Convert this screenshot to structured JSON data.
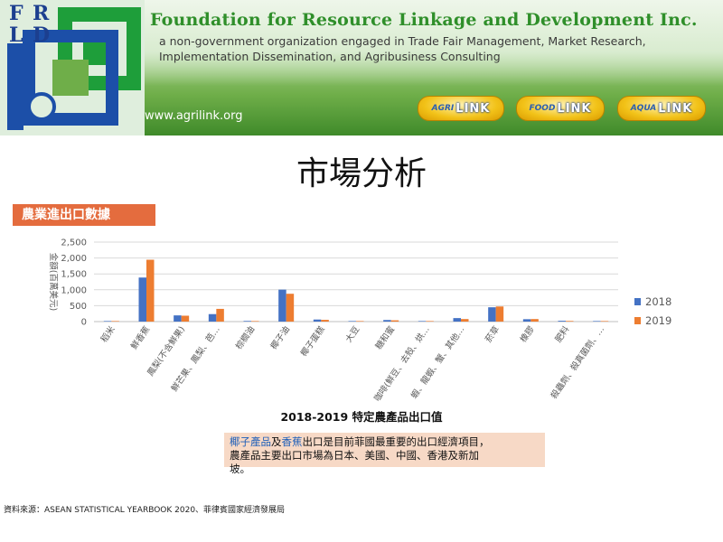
{
  "header": {
    "logo_letters": [
      "F",
      "R",
      "L",
      "D"
    ],
    "org_name": "Foundation for Resource Linkage and Development Inc.",
    "description_line1": "a non-government organization engaged in Trade Fair Management, Market Research,",
    "description_line2": "Implementation Dissemination, and Agribusiness Consulting",
    "website": "www.agrilink.org",
    "badges": [
      {
        "prefix": "AGRI",
        "label": "LINK"
      },
      {
        "prefix": "FOOD",
        "label": "LINK"
      },
      {
        "prefix": "AQUA",
        "label": "LINK"
      }
    ]
  },
  "page": {
    "title": "市場分析",
    "section_label": "農業進出口數據",
    "chart_caption": "2018-2019 特定農產品出口值",
    "note_hl1": "椰子產品",
    "note_mid": "及",
    "note_hl2": "香蕉",
    "note_rest": "出口是目前菲國最重要的出口經濟項目，",
    "note_line2": "農產品主要出口市場為日本、美國、中國、香港及新加",
    "note_line3": "坡。",
    "source": "資料來源：ASEAN STATISTICAL YEARBOOK 2020、菲律賓國家經濟發展局"
  },
  "colors": {
    "series_2018": "#4472c4",
    "series_2019": "#ed7d31",
    "label_bg": "#e46c3e",
    "note_bg": "#f7d9c6",
    "highlight": "#1f5fb8"
  },
  "chart_data": {
    "type": "bar",
    "ylabel": "金額(百萬美元)",
    "ylim": [
      0,
      2500
    ],
    "yticks": [
      "0",
      "500",
      "1,000",
      "1,500",
      "2,000",
      "2,500"
    ],
    "grid": true,
    "legend": "right",
    "categories": [
      "稻米",
      "鮮香蕉",
      "鳳梨(不含鮮果)",
      "鮮芒果、鳳梨、芭…",
      "棕櫚油",
      "椰子油",
      "椰子蛋糕",
      "大豆",
      "糖和蜜",
      "咖啡(鮮豆、去殼、烘…",
      "蝦、龍蝦、蟹、其他…",
      "菸草",
      "橡膠",
      "肥料",
      "殺蟲劑、殺真菌劑、…"
    ],
    "series": [
      {
        "name": "2018",
        "values": [
          3,
          1385,
          195,
          235,
          20,
          1005,
          65,
          5,
          50,
          5,
          110,
          450,
          75,
          25,
          5
        ]
      },
      {
        "name": "2019",
        "values": [
          3,
          1945,
          185,
          400,
          10,
          875,
          55,
          5,
          40,
          5,
          80,
          475,
          80,
          20,
          5
        ]
      }
    ]
  }
}
